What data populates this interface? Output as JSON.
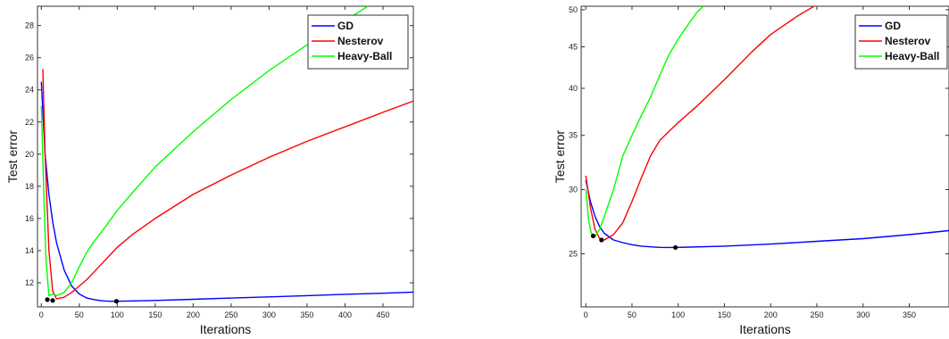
{
  "chart_data": [
    {
      "type": "line",
      "xlabel": "Iterations",
      "ylabel": "Test error",
      "xlim": [
        -5,
        490
      ],
      "ylim": [
        10.5,
        29.2
      ],
      "xticks": [
        0,
        50,
        100,
        150,
        200,
        250,
        300,
        350,
        400,
        450
      ],
      "yticks": [
        12,
        14,
        16,
        18,
        20,
        22,
        24,
        26,
        28
      ],
      "yscale": "linear",
      "grid": false,
      "legend_position": "top-right",
      "series": [
        {
          "name": "GD",
          "color": "#0000ff",
          "x": [
            0,
            5,
            10,
            15,
            20,
            30,
            40,
            50,
            60,
            70,
            80,
            90,
            100,
            150,
            200,
            250,
            300,
            350,
            400,
            450,
            490
          ],
          "y": [
            24.5,
            20.0,
            17.5,
            15.8,
            14.5,
            12.8,
            11.8,
            11.3,
            11.05,
            10.95,
            10.88,
            10.85,
            10.85,
            10.9,
            10.97,
            11.05,
            11.12,
            11.2,
            11.28,
            11.35,
            11.42
          ]
        },
        {
          "name": "Nesterov",
          "color": "#ff0000",
          "x": [
            2,
            5,
            10,
            15,
            20,
            30,
            40,
            50,
            60,
            80,
            100,
            120,
            150,
            200,
            250,
            300,
            350,
            400,
            450,
            490
          ],
          "y": [
            25.3,
            20.0,
            14.0,
            11.5,
            11.0,
            11.1,
            11.4,
            11.8,
            12.2,
            13.2,
            14.2,
            15.0,
            16.0,
            17.5,
            18.7,
            19.8,
            20.8,
            21.7,
            22.6,
            23.3
          ]
        },
        {
          "name": "Heavy-Ball",
          "color": "#00ff00",
          "x": [
            0,
            3,
            6,
            10,
            15,
            20,
            30,
            40,
            50,
            60,
            70,
            80,
            100,
            120,
            150,
            200,
            250,
            300,
            350,
            400,
            430
          ],
          "y": [
            23.0,
            18.0,
            13.5,
            11.2,
            11.3,
            11.2,
            11.4,
            12.0,
            13.0,
            13.9,
            14.6,
            15.2,
            16.5,
            17.6,
            19.2,
            21.4,
            23.4,
            25.2,
            26.8,
            28.3,
            29.2
          ]
        }
      ],
      "minima": [
        {
          "x": 8,
          "y": 10.95
        },
        {
          "x": 15,
          "y": 10.9
        },
        {
          "x": 99,
          "y": 10.85
        }
      ]
    },
    {
      "type": "line",
      "xlabel": "Iterations",
      "ylabel": "Test error",
      "xlim": [
        -5,
        393
      ],
      "ylim": [
        21.5,
        50.5
      ],
      "xticks": [
        0,
        50,
        100,
        150,
        200,
        250,
        300,
        350
      ],
      "yticks": [
        25,
        30,
        35,
        40,
        45,
        50
      ],
      "yscale": "log",
      "grid": false,
      "legend_position": "top-right",
      "series": [
        {
          "name": "GD",
          "color": "#0000ff",
          "x": [
            0,
            5,
            10,
            15,
            20,
            30,
            40,
            50,
            60,
            70,
            80,
            90,
            97,
            150,
            200,
            250,
            300,
            350,
            393
          ],
          "y": [
            30.8,
            29.0,
            27.8,
            27.0,
            26.5,
            26.0,
            25.8,
            25.65,
            25.55,
            25.5,
            25.46,
            25.45,
            25.45,
            25.55,
            25.7,
            25.9,
            26.1,
            26.4,
            26.7
          ]
        },
        {
          "name": "Nesterov",
          "color": "#ff0000",
          "x": [
            0,
            5,
            10,
            15,
            20,
            30,
            40,
            50,
            60,
            70,
            80,
            100,
            120,
            150,
            180,
            200,
            230,
            247
          ],
          "y": [
            31.2,
            28.5,
            26.8,
            26.1,
            26.0,
            26.4,
            27.3,
            29.0,
            31.0,
            33.0,
            34.5,
            36.3,
            38.0,
            41.0,
            44.4,
            46.6,
            49.2,
            50.5
          ]
        },
        {
          "name": "Heavy-Ball",
          "color": "#00ff00",
          "x": [
            0,
            3,
            6,
            10,
            15,
            20,
            30,
            40,
            50,
            60,
            70,
            80,
            90,
            100,
            110,
            120,
            127
          ],
          "y": [
            30.0,
            27.5,
            26.5,
            26.3,
            26.8,
            27.8,
            30.0,
            33.0,
            35.0,
            37.0,
            39.0,
            41.5,
            44.0,
            46.0,
            47.8,
            49.6,
            50.5
          ]
        }
      ],
      "minima": [
        {
          "x": 8,
          "y": 26.3
        },
        {
          "x": 17,
          "y": 26.0
        },
        {
          "x": 97,
          "y": 25.45
        }
      ]
    }
  ]
}
